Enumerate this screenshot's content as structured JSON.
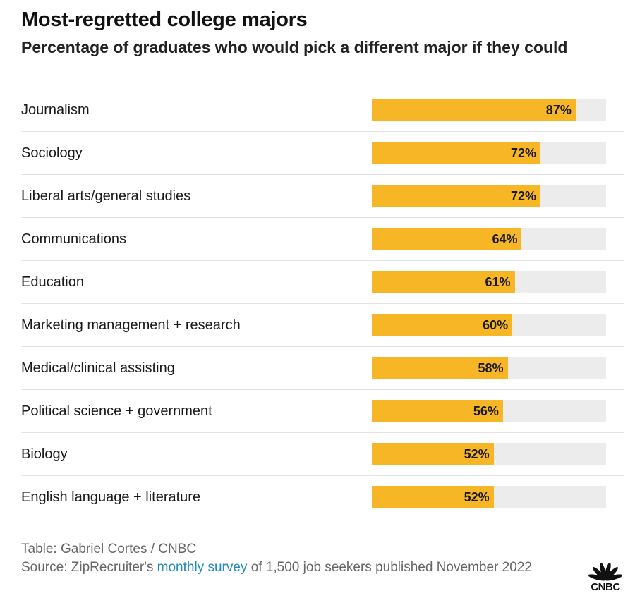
{
  "header": {
    "title": "Most-regretted college majors",
    "subtitle": "Percentage of graduates who would pick a different major if they could"
  },
  "chart_data": {
    "type": "bar",
    "orientation": "horizontal",
    "title": "Most-regretted college majors",
    "subtitle": "Percentage of graduates who would pick a different major if they could",
    "xlim": [
      0,
      100
    ],
    "unit": "%",
    "categories": [
      "Journalism",
      "Sociology",
      "Liberal arts/general studies",
      "Communications",
      "Education",
      "Marketing management + research",
      "Medical/clinical assisting",
      "Political science + government",
      "Biology",
      "English language + literature"
    ],
    "values": [
      87,
      72,
      72,
      64,
      61,
      60,
      58,
      56,
      52,
      52
    ],
    "value_labels": [
      "87%",
      "72%",
      "72%",
      "64%",
      "61%",
      "60%",
      "58%",
      "56%",
      "52%",
      "52%"
    ],
    "colors": {
      "bar": "#f7b626",
      "track": "#ececec"
    }
  },
  "footer": {
    "credit": "Table: Gabriel Cortes / CNBC",
    "source_prefix": "Source: ZipRecruiter's ",
    "source_link": "monthly survey",
    "source_suffix": " of 1,500 job seekers published November 2022",
    "link_color": "#1f8ac0"
  },
  "logo": {
    "text": "CNBC",
    "icon": "peacock-icon"
  }
}
